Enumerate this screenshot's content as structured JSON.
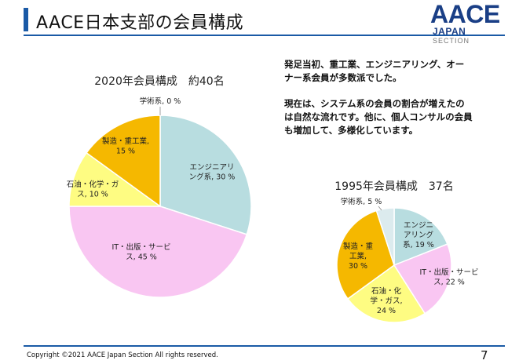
{
  "header": {
    "title": "AACE日本支部の会員構成"
  },
  "logo": {
    "main": "AACE",
    "line2": "JAPAN",
    "line3": "SECTION"
  },
  "chart_data": [
    {
      "type": "pie",
      "title": "2020年会員構成　約40名",
      "slices": [
        {
          "label": "学術系, 0 %",
          "value": 0,
          "color": "#b6d7dc"
        },
        {
          "label": "エンジニアリング系, 30 %",
          "value": 30,
          "color": "#b8dde0"
        },
        {
          "label": "IT・出版・サービス, 45 %",
          "value": 45,
          "color": "#f9c6f2"
        },
        {
          "label": "石油・化学・ガス, 10 %",
          "value": 10,
          "color": "#fefc82"
        },
        {
          "label": "製造・重工業, 15 %",
          "value": 15,
          "color": "#f5b800"
        }
      ]
    },
    {
      "type": "pie",
      "title": "1995年会員構成　37名",
      "slices": [
        {
          "label": "エンジニアリング系, 19 %",
          "value": 19,
          "color": "#b8dde0"
        },
        {
          "label": "IT・出版・サービス, 22 %",
          "value": 22,
          "color": "#f9c6f2"
        },
        {
          "label": "石油・化学・ガス, 24 %",
          "value": 24,
          "color": "#fefc82"
        },
        {
          "label": "製造・重工業, 30 %",
          "value": 30,
          "color": "#f5b800"
        },
        {
          "label": "学術系, 5 %",
          "value": 5,
          "color": "#dcebee"
        }
      ]
    }
  ],
  "notes": [
    "発足当初、重工業、エンジニアリング、オー\nナー系会員が多数派でした。",
    "現在は、システム系の会員の割合が増えたの\nは自然な流れです。他に、個人コンサルの会員\nも増加して、多様化しています。"
  ],
  "footer": {
    "copyright": "Copyright ©2021 AACE Japan Section All rights reserved.",
    "page": "7"
  }
}
